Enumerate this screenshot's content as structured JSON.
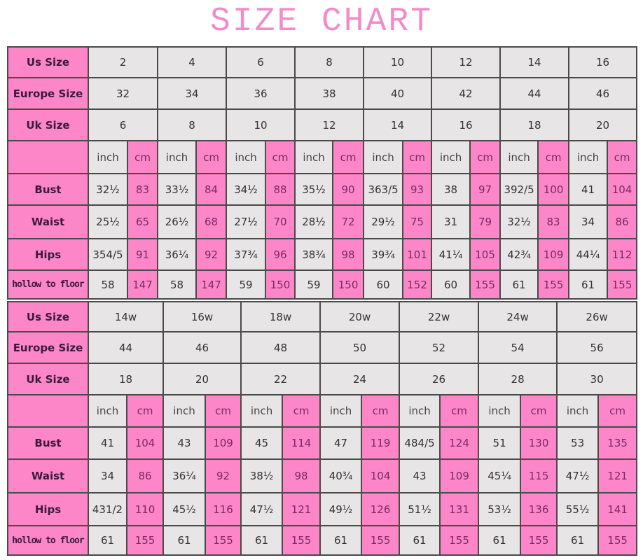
{
  "title": "SIZE CHART",
  "colors": {
    "pink": "#fd86c9",
    "gray": "#e7e5e6",
    "title": "#f28cc9"
  },
  "labels": {
    "us": "Us Size",
    "eu": "Europe Size",
    "uk": "Uk Size",
    "bust": "Bust",
    "waist": "Waist",
    "hips": "Hips",
    "h2f": "hollow to floor",
    "inch": "inch",
    "cm": "cm"
  },
  "tables": [
    {
      "us": [
        "2",
        "4",
        "6",
        "8",
        "10",
        "12",
        "14",
        "16"
      ],
      "eu": [
        "32",
        "34",
        "36",
        "38",
        "40",
        "42",
        "44",
        "46"
      ],
      "uk": [
        "6",
        "8",
        "10",
        "12",
        "14",
        "16",
        "18",
        "20"
      ],
      "bust": [
        [
          "32½",
          "83"
        ],
        [
          "33½",
          "84"
        ],
        [
          "34½",
          "88"
        ],
        [
          "35½",
          "90"
        ],
        [
          "363/5",
          "93"
        ],
        [
          "38",
          "97"
        ],
        [
          "392/5",
          "100"
        ],
        [
          "41",
          "104"
        ]
      ],
      "waist": [
        [
          "25½",
          "65"
        ],
        [
          "26½",
          "68"
        ],
        [
          "27½",
          "70"
        ],
        [
          "28½",
          "72"
        ],
        [
          "29½",
          "75"
        ],
        [
          "31",
          "79"
        ],
        [
          "32½",
          "83"
        ],
        [
          "34",
          "86"
        ]
      ],
      "hips": [
        [
          "354/5",
          "91"
        ],
        [
          "36¼",
          "92"
        ],
        [
          "37¾",
          "96"
        ],
        [
          "38¾",
          "98"
        ],
        [
          "39¾",
          "101"
        ],
        [
          "41¼",
          "105"
        ],
        [
          "42¾",
          "109"
        ],
        [
          "44¼",
          "112"
        ]
      ],
      "h2f": [
        [
          "58",
          "147"
        ],
        [
          "58",
          "147"
        ],
        [
          "59",
          "150"
        ],
        [
          "59",
          "150"
        ],
        [
          "60",
          "152"
        ],
        [
          "60",
          "155"
        ],
        [
          "61",
          "155"
        ],
        [
          "61",
          "155"
        ]
      ]
    },
    {
      "us": [
        "14w",
        "16w",
        "18w",
        "20w",
        "22w",
        "24w",
        "26w"
      ],
      "eu": [
        "44",
        "46",
        "48",
        "50",
        "52",
        "54",
        "56"
      ],
      "uk": [
        "18",
        "20",
        "22",
        "24",
        "26",
        "28",
        "30"
      ],
      "bust": [
        [
          "41",
          "104"
        ],
        [
          "43",
          "109"
        ],
        [
          "45",
          "114"
        ],
        [
          "47",
          "119"
        ],
        [
          "484/5",
          "124"
        ],
        [
          "51",
          "130"
        ],
        [
          "53",
          "135"
        ]
      ],
      "waist": [
        [
          "34",
          "86"
        ],
        [
          "36¼",
          "92"
        ],
        [
          "38½",
          "98"
        ],
        [
          "40¾",
          "104"
        ],
        [
          "43",
          "109"
        ],
        [
          "45¼",
          "115"
        ],
        [
          "47½",
          "121"
        ]
      ],
      "hips": [
        [
          "431/2",
          "110"
        ],
        [
          "45½",
          "116"
        ],
        [
          "47½",
          "121"
        ],
        [
          "49½",
          "126"
        ],
        [
          "51½",
          "131"
        ],
        [
          "53½",
          "136"
        ],
        [
          "55½",
          "141"
        ]
      ],
      "h2f": [
        [
          "61",
          "155"
        ],
        [
          "61",
          "155"
        ],
        [
          "61",
          "155"
        ],
        [
          "61",
          "155"
        ],
        [
          "61",
          "155"
        ],
        [
          "61",
          "155"
        ],
        [
          "61",
          "155"
        ]
      ]
    }
  ]
}
